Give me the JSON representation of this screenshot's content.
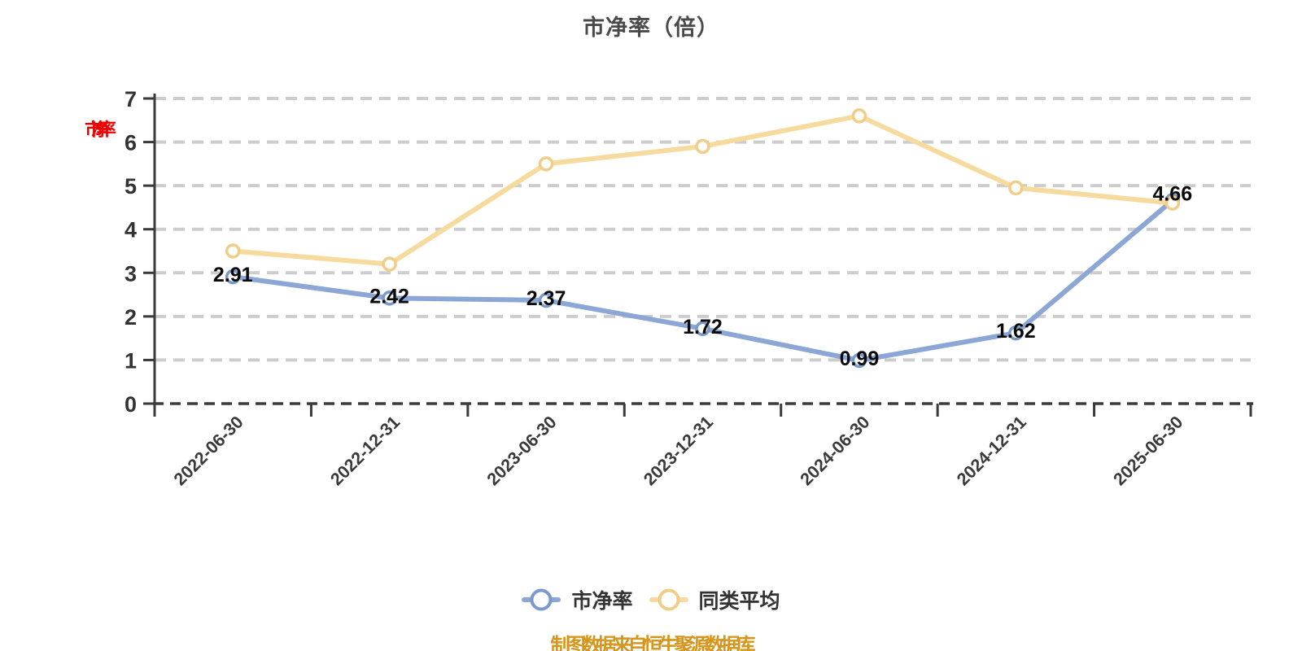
{
  "title": "市净率（倍）",
  "footer_note": "制图数据来自恒生聚源数据库",
  "footer_color": "#d6951b",
  "chart_data": {
    "type": "line",
    "title": "市净率（倍）",
    "categories": [
      "2022-06-30",
      "2022-12-31",
      "2023-06-30",
      "2023-12-31",
      "2024-06-30",
      "2024-12-31",
      "2025-06-30"
    ],
    "series": [
      {
        "name": "市净率",
        "color": "#8ca6d5",
        "marker_border": "#7b99ca",
        "values": [
          2.91,
          2.42,
          2.37,
          1.72,
          0.99,
          1.62,
          4.66
        ],
        "labels": [
          "2.91",
          "2.42",
          "2.37",
          "1.72",
          "0.99",
          "1.62",
          "4.66"
        ],
        "show_labels": true
      },
      {
        "name": "同类平均",
        "color": "#f6da9e",
        "marker_border": "#f0cd88",
        "values": [
          3.5,
          3.2,
          5.5,
          5.9,
          6.6,
          4.95,
          4.6
        ],
        "labels": [],
        "show_labels": false
      }
    ],
    "x_axis": {
      "tick_labels_rotation": -45
    },
    "y_axis": {
      "min": 0,
      "max": 7,
      "ticks": [
        "0",
        "1",
        "2",
        "3",
        "4",
        "5",
        "6",
        "7"
      ],
      "name": "市净率",
      "name_color": "#ec0000"
    },
    "grid": {
      "horizontal_dashed": true,
      "color": "#cdcdcd"
    },
    "axis_color": "#3a3a3a",
    "label_color": "#0a0a0a",
    "legend_position": "bottom"
  }
}
